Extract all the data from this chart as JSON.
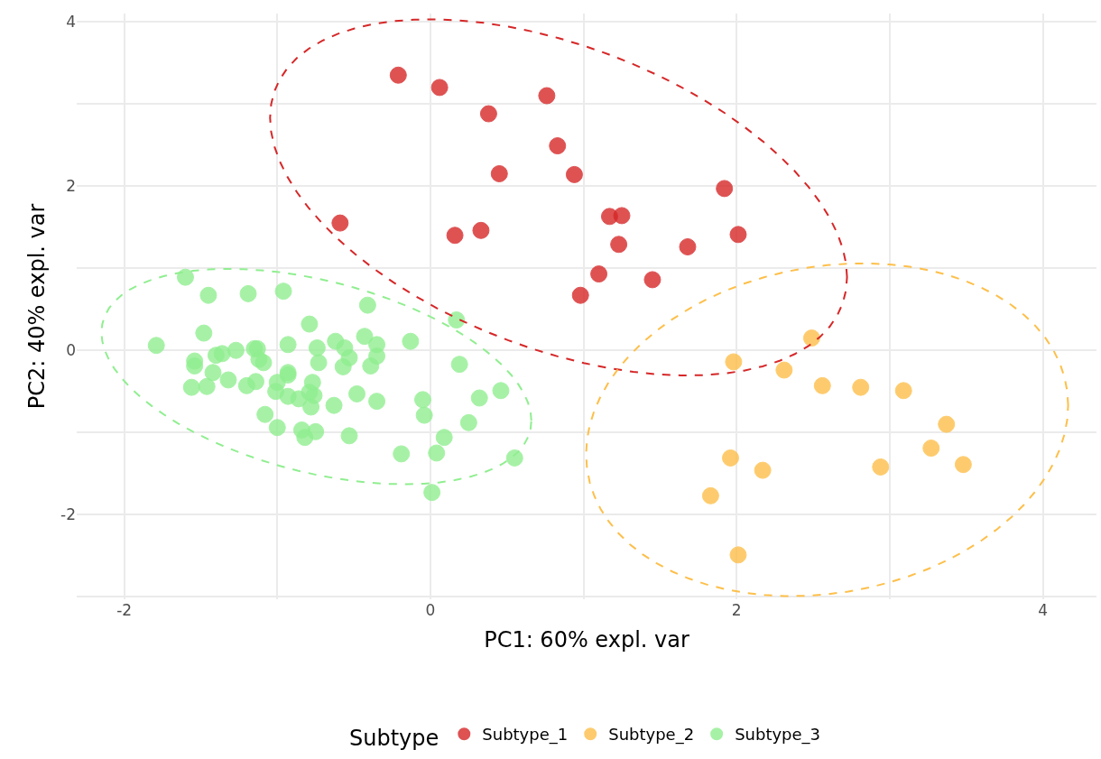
{
  "chart_data": {
    "type": "scatter",
    "xlabel": "PC1: 60% expl. var",
    "ylabel": "PC2: 40% expl. var",
    "legend_title": "Subtype",
    "xlim": [
      -2.31,
      4.35
    ],
    "ylim": [
      -3.03,
      4.1
    ],
    "xticks": [
      -2,
      {
        "value": -1,
        "label": null
      },
      0,
      {
        "value": 1,
        "label": null
      },
      2,
      {
        "value": 3,
        "label": null
      },
      4
    ],
    "yticks": [
      {
        "value": -3,
        "label": null
      },
      -2,
      {
        "value": -1,
        "label": null
      },
      0,
      {
        "value": 1,
        "label": null
      },
      2,
      {
        "value": 3,
        "label": null
      },
      4
    ],
    "grid": true,
    "legend": "bottom",
    "marker": "circle",
    "series": [
      {
        "name": "Subtype_1",
        "color": "#d62728",
        "x": [
          -0.21,
          0.06,
          0.38,
          0.76,
          0.83,
          0.45,
          0.94,
          -0.59,
          0.16,
          0.33,
          1.17,
          1.25,
          1.23,
          1.92,
          2.01,
          1.68,
          1.1,
          1.45,
          0.98
        ],
        "values": [
          3.35,
          3.2,
          2.88,
          3.1,
          2.49,
          2.15,
          2.14,
          1.55,
          1.4,
          1.46,
          1.63,
          1.64,
          1.29,
          1.97,
          1.41,
          1.26,
          0.93,
          0.86,
          0.67
        ]
      },
      {
        "name": "Subtype_2",
        "color": "#fdbf4a",
        "x": [
          2.49,
          1.98,
          2.31,
          2.56,
          2.81,
          3.09,
          3.37,
          3.27,
          3.48,
          2.94,
          1.96,
          2.17,
          1.83,
          2.01
        ],
        "values": [
          0.15,
          -0.14,
          -0.24,
          -0.43,
          -0.45,
          -0.49,
          -0.9,
          -1.19,
          -1.39,
          -1.42,
          -1.31,
          -1.46,
          -1.77,
          -2.49
        ]
      },
      {
        "name": "Subtype_3",
        "color": "#90ee90",
        "x": [
          -1.6,
          -1.45,
          -1.19,
          -0.96,
          -0.41,
          0.17,
          -0.79,
          -1.48,
          -1.79,
          -0.93,
          -0.62,
          -0.74,
          -0.56,
          -0.43,
          -0.35,
          -0.13,
          -0.35,
          -0.39,
          -0.53,
          -0.57,
          -0.73,
          -1.13,
          -1.15,
          -1.27,
          -1.36,
          -1.4,
          -1.12,
          -1.09,
          -1.54,
          -1.54,
          -1.42,
          -1.56,
          -1.46,
          -1.32,
          -1.2,
          -1.14,
          -0.93,
          -0.93,
          -1.0,
          -1.01,
          -0.93,
          -0.86,
          -0.77,
          -0.79,
          -0.76,
          -0.78,
          -0.63,
          -0.48,
          -0.35,
          -1.08,
          -1.0,
          -0.84,
          -0.82,
          -0.75,
          -0.53,
          -0.05,
          -0.04,
          0.19,
          0.46,
          0.32,
          0.25,
          0.09,
          0.04,
          -0.19,
          0.55,
          0.01
        ],
        "values": [
          0.89,
          0.67,
          0.69,
          0.72,
          0.55,
          0.37,
          0.32,
          0.21,
          0.06,
          0.07,
          0.11,
          0.03,
          0.03,
          0.17,
          0.07,
          0.11,
          -0.07,
          -0.19,
          -0.09,
          -0.2,
          -0.15,
          0.02,
          0.02,
          0.0,
          -0.04,
          -0.06,
          -0.11,
          -0.15,
          -0.13,
          -0.19,
          -0.27,
          -0.45,
          -0.44,
          -0.36,
          -0.43,
          -0.38,
          -0.27,
          -0.3,
          -0.39,
          -0.5,
          -0.56,
          -0.59,
          -0.39,
          -0.51,
          -0.55,
          -0.69,
          -0.67,
          -0.53,
          -0.62,
          -0.78,
          -0.94,
          -0.97,
          -1.06,
          -0.99,
          -1.04,
          -0.6,
          -0.79,
          -0.17,
          -0.49,
          -0.58,
          -0.88,
          -1.06,
          -1.25,
          -1.26,
          -1.31,
          -1.73
        ]
      }
    ]
  }
}
